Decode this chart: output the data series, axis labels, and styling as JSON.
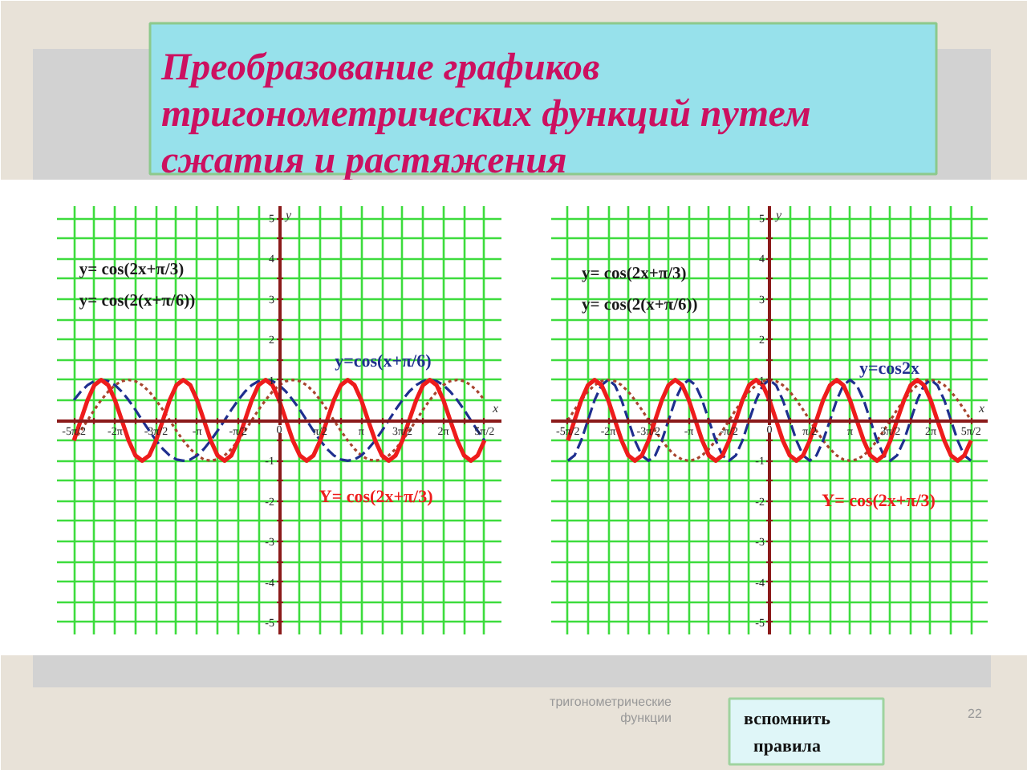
{
  "chart_data": [
    {
      "type": "line",
      "title": "Преобразование графиков тригонометрических функций путем сжатия и растяжения",
      "xlabel": "x",
      "ylabel": "y",
      "annotations": [
        "y= cos(2x+π/3)",
        "y= cos(2(x+π/6))"
      ],
      "x": [
        -7.85,
        -7.59,
        -7.33,
        -7.07,
        -6.81,
        -6.54,
        -6.28,
        -6.02,
        -5.76,
        -5.5,
        -5.24,
        -4.97,
        -4.71,
        -4.45,
        -4.19,
        -3.93,
        -3.67,
        -3.4,
        -3.14,
        -2.88,
        -2.62,
        -2.36,
        -2.09,
        -1.83,
        -1.57,
        -1.31,
        -1.05,
        -0.79,
        -0.52,
        -0.26,
        0,
        0.26,
        0.52,
        0.79,
        1.05,
        1.31,
        1.57,
        1.83,
        2.09,
        2.36,
        2.62,
        2.88,
        3.14,
        3.4,
        3.67,
        3.93,
        4.19,
        4.45,
        4.71,
        4.97,
        5.24,
        5.5,
        5.76,
        6.02,
        6.28,
        6.54,
        6.81,
        7.07,
        7.33,
        7.59,
        7.85
      ],
      "series": [
        {
          "color": "#a8442e",
          "line_style": "dotted",
          "values": [
            -0.5,
            -0.26,
            0,
            0.26,
            0.5,
            0.71,
            0.87,
            0.97,
            1,
            0.97,
            0.87,
            0.71,
            0.5,
            0.26,
            0,
            -0.26,
            -0.5,
            -0.71,
            -0.87,
            -0.97,
            -1,
            -0.97,
            -0.87,
            -0.71,
            -0.5,
            -0.26,
            0,
            0.26,
            0.5,
            0.71,
            0.87,
            0.97,
            1,
            0.97,
            0.87,
            0.71,
            0.5,
            0.26,
            0,
            -0.26,
            -0.5,
            -0.71,
            -0.87,
            -0.97,
            -1,
            -0.97,
            -0.87,
            -0.71,
            -0.5,
            -0.26,
            0,
            0.26,
            0.5,
            0.71,
            0.87,
            0.97,
            1,
            0.97,
            0.87,
            0.71,
            0.5
          ]
        },
        {
          "name": "y=cos(x+π/6)",
          "color": "#1f2f8f",
          "line_style": "dashed",
          "values": [
            0.5,
            0.71,
            0.87,
            0.97,
            1,
            0.97,
            0.87,
            0.71,
            0.5,
            0.26,
            0,
            -0.26,
            -0.5,
            -0.71,
            -0.87,
            -0.97,
            -1,
            -0.97,
            -0.87,
            -0.71,
            -0.5,
            -0.26,
            0,
            0.26,
            0.5,
            0.71,
            0.87,
            0.97,
            1,
            0.97,
            0.87,
            0.71,
            0.5,
            0.26,
            0,
            -0.26,
            -0.5,
            -0.71,
            -0.87,
            -0.97,
            -1,
            -0.97,
            -0.87,
            -0.71,
            -0.5,
            -0.26,
            0,
            0.26,
            0.5,
            0.71,
            0.87,
            0.97,
            1,
            0.97,
            0.87,
            0.71,
            0.5,
            0.26,
            0,
            -0.26,
            -0.5
          ]
        },
        {
          "name": "Y= cos(2x+π/3)",
          "color": "#ee1c1c",
          "line_style": "solid",
          "values": [
            -0.5,
            0,
            0.5,
            0.87,
            1,
            0.87,
            0.5,
            0,
            -0.5,
            -0.87,
            -1,
            -0.87,
            -0.5,
            0,
            0.5,
            0.87,
            1,
            0.87,
            0.5,
            0,
            -0.5,
            -0.87,
            -1,
            -0.87,
            -0.5,
            0,
            0.5,
            0.87,
            1,
            0.87,
            0.5,
            0,
            -0.5,
            -0.87,
            -1,
            -0.87,
            -0.5,
            0,
            0.5,
            0.87,
            1,
            0.87,
            0.5,
            0,
            -0.5,
            -0.87,
            -1,
            -0.87,
            -0.5,
            0,
            0.5,
            0.87,
            1,
            0.87,
            0.5,
            0,
            -0.5,
            -0.87,
            -1,
            -0.87,
            -0.5
          ]
        }
      ],
      "xlim": [
        -8.5,
        8.5
      ],
      "ylim": [
        -5.3,
        5.3
      ],
      "xticks": [
        {
          "value": -7.85,
          "label": "-5π/2"
        },
        {
          "value": -7.07,
          "label": null
        },
        {
          "value": -6.28,
          "label": "-2π"
        },
        {
          "value": -5.5,
          "label": null
        },
        {
          "value": -4.71,
          "label": "-3π/2"
        },
        {
          "value": -3.93,
          "label": null
        },
        {
          "value": -3.14,
          "label": "-π"
        },
        {
          "value": -2.36,
          "label": null
        },
        {
          "value": -1.57,
          "label": "-π/2"
        },
        {
          "value": -0.79,
          "label": null
        },
        0,
        {
          "value": 0.79,
          "label": null
        },
        {
          "value": 1.57,
          "label": "π/2"
        },
        {
          "value": 2.36,
          "label": null
        },
        {
          "value": 3.14,
          "label": "π"
        },
        {
          "value": 3.93,
          "label": null
        },
        {
          "value": 4.71,
          "label": "3π/2"
        },
        {
          "value": 5.5,
          "label": null
        },
        {
          "value": 6.28,
          "label": "2π"
        },
        {
          "value": 7.07,
          "label": null
        },
        {
          "value": 7.85,
          "label": "5π/2"
        }
      ],
      "yticks": [
        -5,
        {
          "value": -4.5,
          "label": null
        },
        -4,
        {
          "value": -3.5,
          "label": null
        },
        -3,
        {
          "value": -2.5,
          "label": null
        },
        -2,
        {
          "value": -1.5,
          "label": null
        },
        -1,
        {
          "value": -0.5,
          "label": null
        },
        {
          "value": 0,
          "label": null
        },
        {
          "value": 0.5,
          "label": null
        },
        1,
        {
          "value": 1.5,
          "label": null
        },
        2,
        {
          "value": 2.5,
          "label": null
        },
        3,
        {
          "value": 3.5,
          "label": null
        },
        4,
        {
          "value": 4.5,
          "label": null
        },
        5
      ],
      "grid": true
    },
    {
      "type": "line",
      "xlabel": "x",
      "ylabel": "y",
      "annotations": [
        "y= cos(2x+π/3)",
        "y= cos(2(x+π/6))"
      ],
      "x": [
        -7.85,
        -7.59,
        -7.33,
        -7.07,
        -6.81,
        -6.54,
        -6.28,
        -6.02,
        -5.76,
        -5.5,
        -5.24,
        -4.97,
        -4.71,
        -4.45,
        -4.19,
        -3.93,
        -3.67,
        -3.4,
        -3.14,
        -2.88,
        -2.62,
        -2.36,
        -2.09,
        -1.83,
        -1.57,
        -1.31,
        -1.05,
        -0.79,
        -0.52,
        -0.26,
        0,
        0.26,
        0.52,
        0.79,
        1.05,
        1.31,
        1.57,
        1.83,
        2.09,
        2.36,
        2.62,
        2.88,
        3.14,
        3.4,
        3.67,
        3.93,
        4.19,
        4.45,
        4.71,
        4.97,
        5.24,
        5.5,
        5.76,
        6.02,
        6.28,
        6.54,
        6.81,
        7.07,
        7.33,
        7.59,
        7.85
      ],
      "series": [
        {
          "color": "#a8442e",
          "line_style": "dotted",
          "values": [
            0,
            0.26,
            0.5,
            0.71,
            0.87,
            0.97,
            1,
            0.97,
            0.87,
            0.71,
            0.5,
            0.26,
            0,
            -0.26,
            -0.5,
            -0.71,
            -0.87,
            -0.97,
            -1,
            -0.97,
            -0.87,
            -0.71,
            -0.5,
            -0.26,
            0,
            0.26,
            0.5,
            0.71,
            0.87,
            0.97,
            1,
            0.97,
            0.87,
            0.71,
            0.5,
            0.26,
            0,
            -0.26,
            -0.5,
            -0.71,
            -0.87,
            -0.97,
            -1,
            -0.97,
            -0.87,
            -0.71,
            -0.5,
            -0.26,
            0,
            0.26,
            0.5,
            0.71,
            0.87,
            0.97,
            1,
            0.97,
            0.87,
            0.71,
            0.5,
            0.26,
            0
          ]
        },
        {
          "name": "y=cos2x",
          "color": "#1f2f8f",
          "line_style": "dashed",
          "values": [
            -1,
            -0.87,
            -0.5,
            0,
            0.5,
            0.87,
            1,
            0.87,
            0.5,
            0,
            -0.5,
            -0.87,
            -1,
            -0.87,
            -0.5,
            0,
            0.5,
            0.87,
            1,
            0.87,
            0.5,
            0,
            -0.5,
            -0.87,
            -1,
            -0.87,
            -0.5,
            0,
            0.5,
            0.87,
            1,
            0.87,
            0.5,
            0,
            -0.5,
            -0.87,
            -1,
            -0.87,
            -0.5,
            0,
            0.5,
            0.87,
            1,
            0.87,
            0.5,
            0,
            -0.5,
            -0.87,
            -1,
            -0.87,
            -0.5,
            0,
            0.5,
            0.87,
            1,
            0.87,
            0.5,
            0,
            -0.5,
            -0.87,
            -1
          ]
        },
        {
          "name": "Y= cos(2x+π/3)",
          "color": "#ee1c1c",
          "line_style": "solid",
          "values": [
            -0.5,
            0,
            0.5,
            0.87,
            1,
            0.87,
            0.5,
            0,
            -0.5,
            -0.87,
            -1,
            -0.87,
            -0.5,
            0,
            0.5,
            0.87,
            1,
            0.87,
            0.5,
            0,
            -0.5,
            -0.87,
            -1,
            -0.87,
            -0.5,
            0,
            0.5,
            0.87,
            1,
            0.87,
            0.5,
            0,
            -0.5,
            -0.87,
            -1,
            -0.87,
            -0.5,
            0,
            0.5,
            0.87,
            1,
            0.87,
            0.5,
            0,
            -0.5,
            -0.87,
            -1,
            -0.87,
            -0.5,
            0,
            0.5,
            0.87,
            1,
            0.87,
            0.5,
            0,
            -0.5,
            -0.87,
            -1,
            -0.87,
            -0.5
          ]
        }
      ],
      "xlim": [
        -8.5,
        8.5
      ],
      "ylim": [
        -5.3,
        5.3
      ],
      "xticks": [
        {
          "value": -7.85,
          "label": "-5π/2"
        },
        {
          "value": -7.07,
          "label": null
        },
        {
          "value": -6.28,
          "label": "-2π"
        },
        {
          "value": -5.5,
          "label": null
        },
        {
          "value": -4.71,
          "label": "-3π/2"
        },
        {
          "value": -3.93,
          "label": null
        },
        {
          "value": -3.14,
          "label": "-π"
        },
        {
          "value": -2.36,
          "label": null
        },
        {
          "value": -1.57,
          "label": "-π/2"
        },
        {
          "value": -0.79,
          "label": null
        },
        0,
        {
          "value": 0.79,
          "label": null
        },
        {
          "value": 1.57,
          "label": "π/2"
        },
        {
          "value": 2.36,
          "label": null
        },
        {
          "value": 3.14,
          "label": "π"
        },
        {
          "value": 3.93,
          "label": null
        },
        {
          "value": 4.71,
          "label": "3π/2"
        },
        {
          "value": 5.5,
          "label": null
        },
        {
          "value": 6.28,
          "label": "2π"
        },
        {
          "value": 7.07,
          "label": null
        },
        {
          "value": 7.85,
          "label": "5π/2"
        }
      ],
      "yticks": [
        -5,
        {
          "value": -4.5,
          "label": null
        },
        -4,
        {
          "value": -3.5,
          "label": null
        },
        -3,
        {
          "value": -2.5,
          "label": null
        },
        -2,
        {
          "value": -1.5,
          "label": null
        },
        -1,
        {
          "value": -0.5,
          "label": null
        },
        {
          "value": 0,
          "label": null
        },
        {
          "value": 0.5,
          "label": null
        },
        1,
        {
          "value": 1.5,
          "label": null
        },
        2,
        {
          "value": 2.5,
          "label": null
        },
        3,
        {
          "value": 3.5,
          "label": null
        },
        4,
        {
          "value": 4.5,
          "label": null
        },
        5
      ],
      "grid": true
    },
    {
      "type": "other",
      "annotations": [
        "тригонометрические функции",
        "22",
        "вспомнить правила"
      ]
    }
  ]
}
